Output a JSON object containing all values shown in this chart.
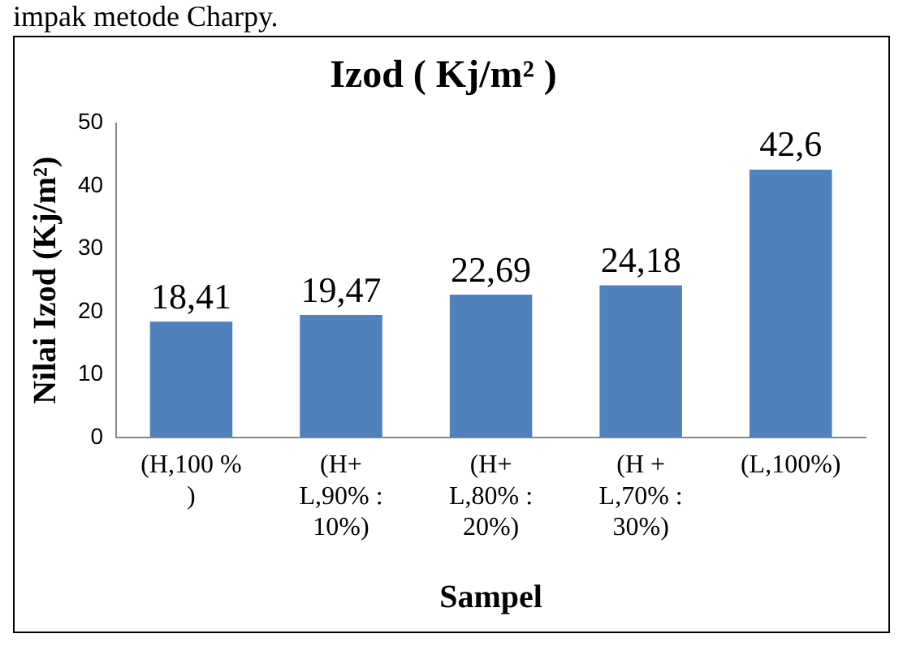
{
  "chart_data": {
    "type": "bar",
    "title": "Izod ( Kj/m² )",
    "xlabel": "Sampel",
    "ylabel": "Nilai Izod (Kj/m²)",
    "annotations": [
      "impak metode Charpy."
    ],
    "categories": [
      "(H,100 %\n)",
      "(H+\nL,90% :\n10%)",
      "(H+\nL,80% :\n20%)",
      "(H +\nL,70% :\n30%)",
      "(L,100%)"
    ],
    "values": [
      18.41,
      19.47,
      22.69,
      24.18,
      42.6
    ],
    "value_labels": [
      "18,41",
      "19,47",
      "22,69",
      "24,18",
      "42,6"
    ],
    "color": "#4f81bd",
    "ylim": [
      0,
      50
    ],
    "yticks": [
      0,
      10,
      20,
      30,
      40,
      50
    ],
    "grid": false,
    "legend": false
  }
}
